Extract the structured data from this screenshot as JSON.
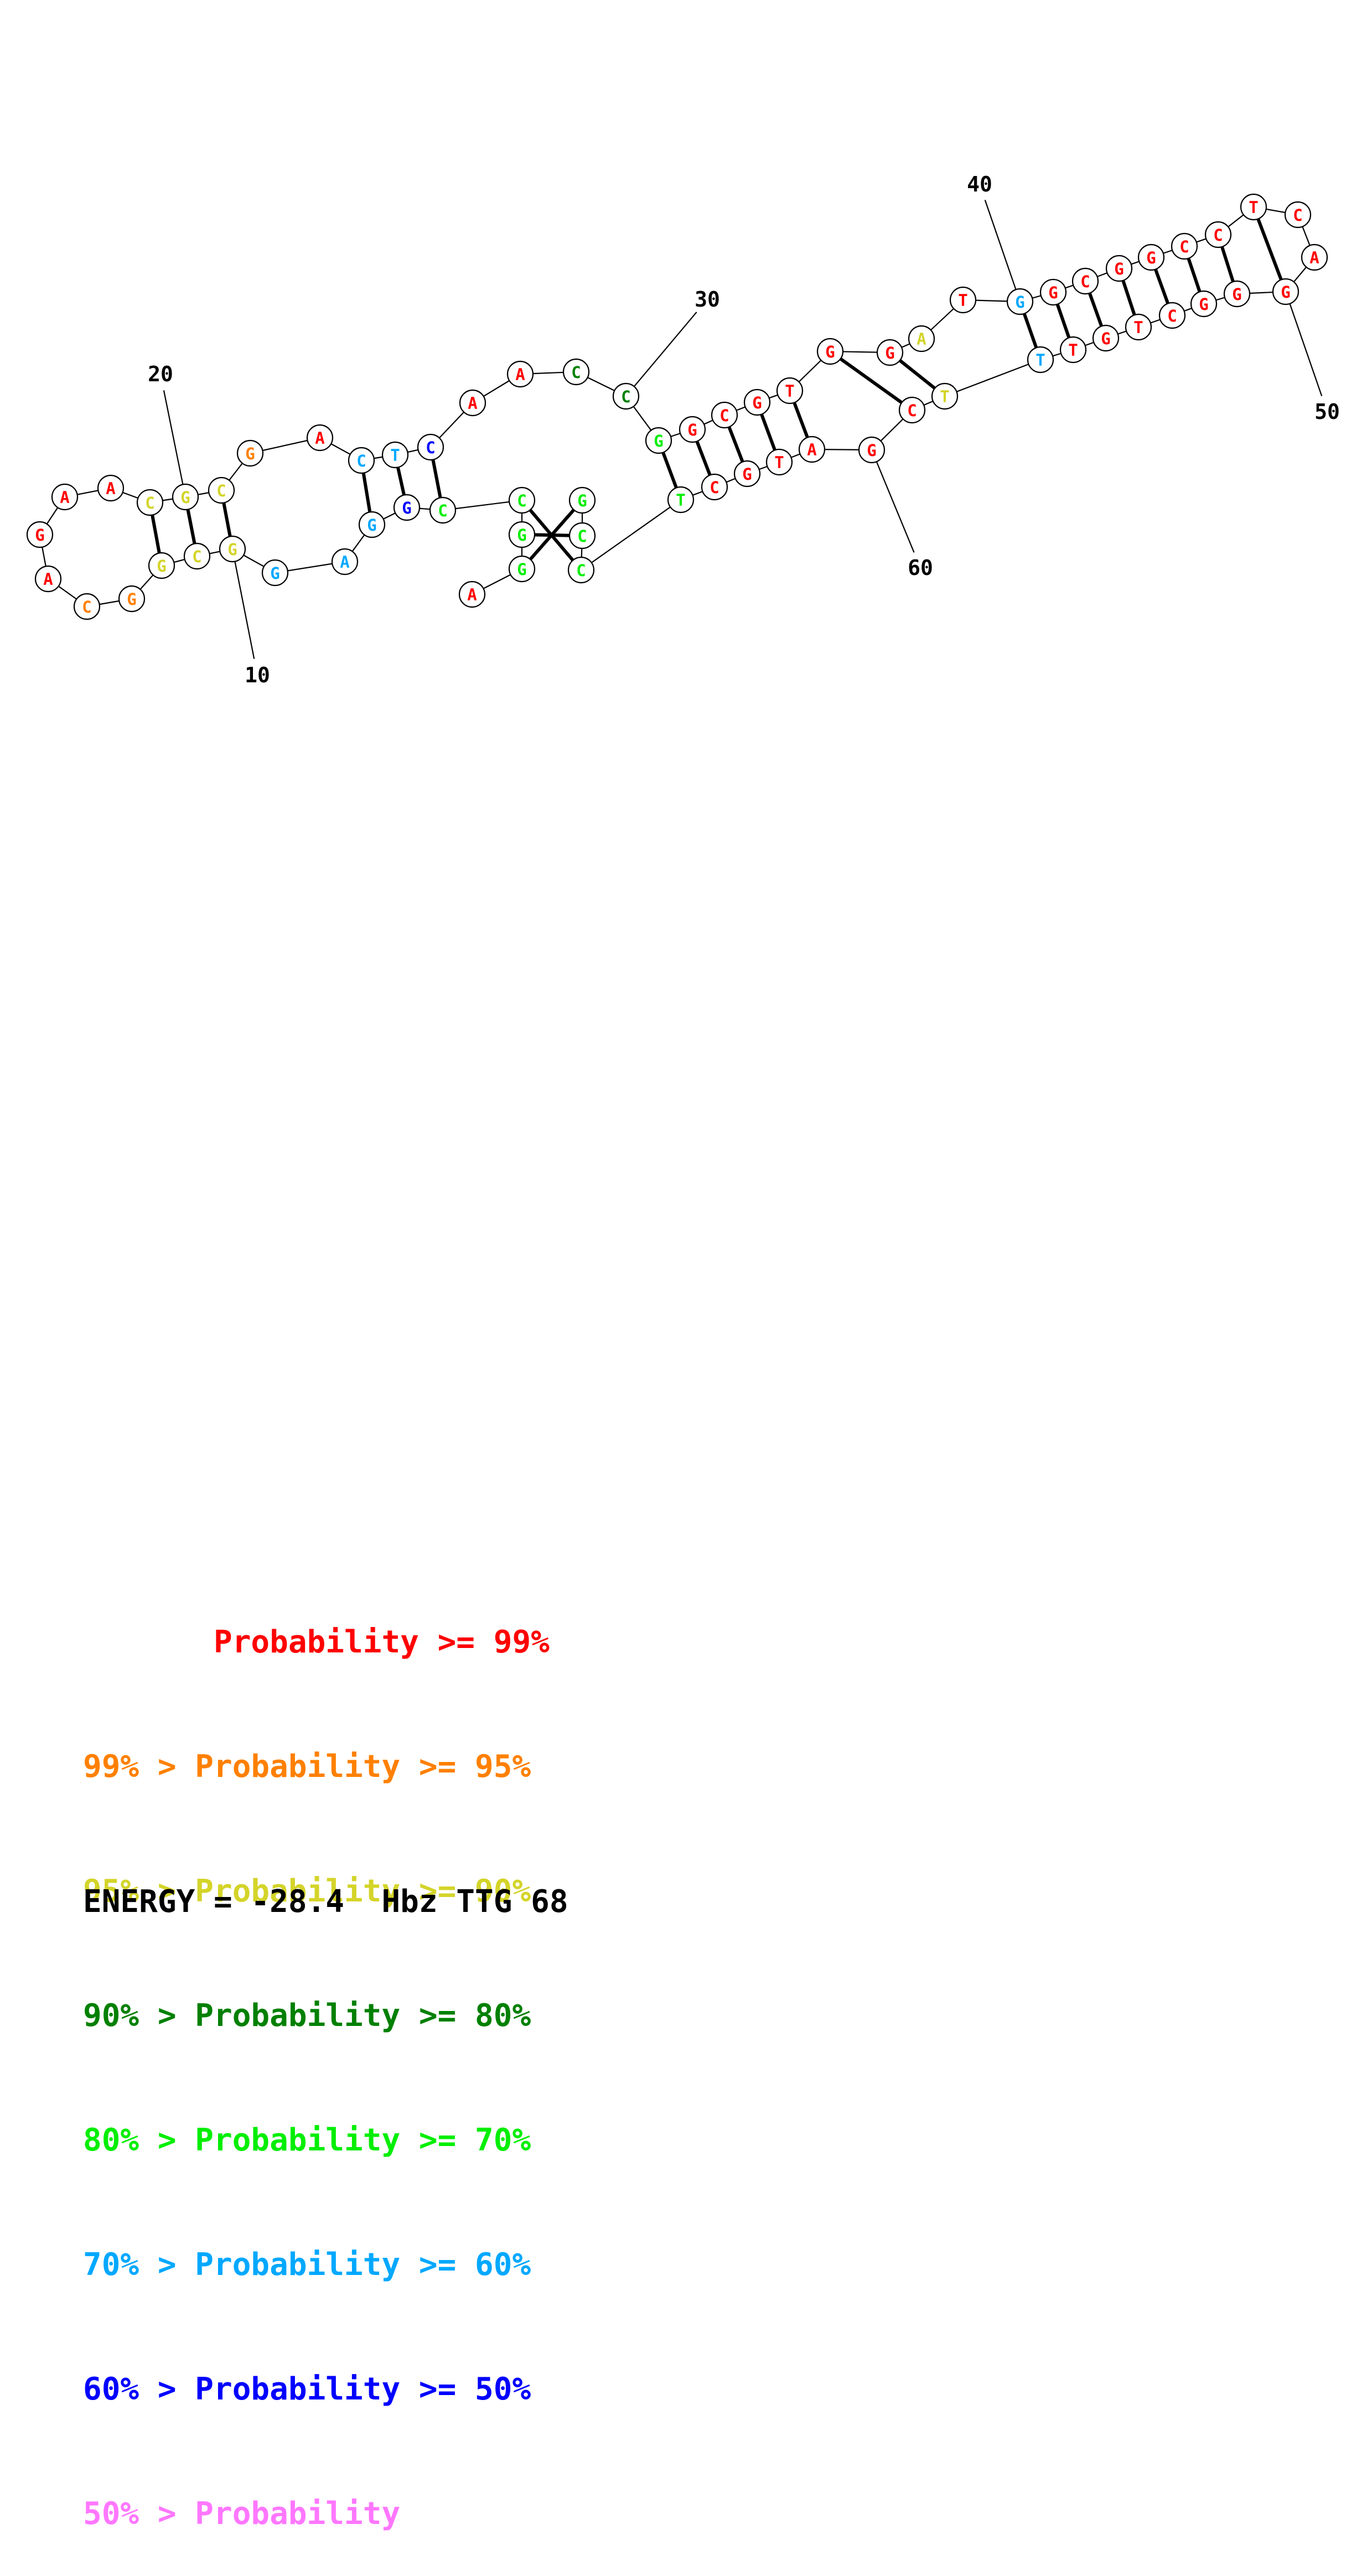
{
  "colors": {
    "p99": "#ff0000",
    "p95": "#ff8000",
    "p90": "#d4d42a",
    "p80": "#008000",
    "p70": "#00ee00",
    "p60": "#00a8ff",
    "p50": "#0000ff",
    "plow": "#ff77ff"
  },
  "sequence": [
    {
      "n": 1,
      "base": "A",
      "prob": "p99"
    },
    {
      "n": 2,
      "base": "G",
      "prob": "p70"
    },
    {
      "n": 3,
      "base": "G",
      "prob": "p70"
    },
    {
      "n": 4,
      "base": "C",
      "prob": "p70"
    },
    {
      "n": 5,
      "base": "C",
      "prob": "p70"
    },
    {
      "n": 6,
      "base": "G",
      "prob": "p50"
    },
    {
      "n": 7,
      "base": "G",
      "prob": "p60"
    },
    {
      "n": 8,
      "base": "A",
      "prob": "p60"
    },
    {
      "n": 9,
      "base": "G",
      "prob": "p60"
    },
    {
      "n": 10,
      "base": "G",
      "prob": "p90"
    },
    {
      "n": 11,
      "base": "C",
      "prob": "p90"
    },
    {
      "n": 12,
      "base": "G",
      "prob": "p90"
    },
    {
      "n": 13,
      "base": "G",
      "prob": "p95"
    },
    {
      "n": 14,
      "base": "C",
      "prob": "p95"
    },
    {
      "n": 15,
      "base": "A",
      "prob": "p99"
    },
    {
      "n": 16,
      "base": "G",
      "prob": "p99"
    },
    {
      "n": 17,
      "base": "A",
      "prob": "p99"
    },
    {
      "n": 18,
      "base": "A",
      "prob": "p99"
    },
    {
      "n": 19,
      "base": "C",
      "prob": "p90"
    },
    {
      "n": 20,
      "base": "G",
      "prob": "p90"
    },
    {
      "n": 21,
      "base": "C",
      "prob": "p90"
    },
    {
      "n": 22,
      "base": "G",
      "prob": "p95"
    },
    {
      "n": 23,
      "base": "A",
      "prob": "p99"
    },
    {
      "n": 24,
      "base": "C",
      "prob": "p60"
    },
    {
      "n": 25,
      "base": "T",
      "prob": "p60"
    },
    {
      "n": 26,
      "base": "C",
      "prob": "p50"
    },
    {
      "n": 27,
      "base": "A",
      "prob": "p99"
    },
    {
      "n": 28,
      "base": "A",
      "prob": "p99"
    },
    {
      "n": 29,
      "base": "C",
      "prob": "p80"
    },
    {
      "n": 30,
      "base": "C",
      "prob": "p80"
    },
    {
      "n": 31,
      "base": "G",
      "prob": "p70"
    },
    {
      "n": 32,
      "base": "G",
      "prob": "p99"
    },
    {
      "n": 33,
      "base": "C",
      "prob": "p99"
    },
    {
      "n": 34,
      "base": "G",
      "prob": "p99"
    },
    {
      "n": 35,
      "base": "T",
      "prob": "p99"
    },
    {
      "n": 36,
      "base": "G",
      "prob": "p99"
    },
    {
      "n": 37,
      "base": "G",
      "prob": "p99"
    },
    {
      "n": 38,
      "base": "A",
      "prob": "p90"
    },
    {
      "n": 39,
      "base": "T",
      "prob": "p99"
    },
    {
      "n": 40,
      "base": "G",
      "prob": "p60"
    },
    {
      "n": 41,
      "base": "G",
      "prob": "p99"
    },
    {
      "n": 42,
      "base": "C",
      "prob": "p99"
    },
    {
      "n": 43,
      "base": "G",
      "prob": "p99"
    },
    {
      "n": 44,
      "base": "G",
      "prob": "p99"
    },
    {
      "n": 45,
      "base": "C",
      "prob": "p99"
    },
    {
      "n": 46,
      "base": "C",
      "prob": "p99"
    },
    {
      "n": 47,
      "base": "T",
      "prob": "p99"
    },
    {
      "n": 48,
      "base": "C",
      "prob": "p99"
    },
    {
      "n": 49,
      "base": "A",
      "prob": "p99"
    },
    {
      "n": 50,
      "base": "G",
      "prob": "p99"
    },
    {
      "n": 51,
      "base": "G",
      "prob": "p99"
    },
    {
      "n": 52,
      "base": "G",
      "prob": "p99"
    },
    {
      "n": 53,
      "base": "C",
      "prob": "p99"
    },
    {
      "n": 54,
      "base": "T",
      "prob": "p99"
    },
    {
      "n": 55,
      "base": "G",
      "prob": "p99"
    },
    {
      "n": 56,
      "base": "T",
      "prob": "p99"
    },
    {
      "n": 57,
      "base": "T",
      "prob": "p60"
    },
    {
      "n": 58,
      "base": "T",
      "prob": "p90"
    },
    {
      "n": 59,
      "base": "C",
      "prob": "p99"
    },
    {
      "n": 60,
      "base": "G",
      "prob": "p99"
    },
    {
      "n": 61,
      "base": "A",
      "prob": "p99"
    },
    {
      "n": 62,
      "base": "T",
      "prob": "p99"
    },
    {
      "n": 63,
      "base": "G",
      "prob": "p99"
    },
    {
      "n": 64,
      "base": "C",
      "prob": "p99"
    },
    {
      "n": 65,
      "base": "T",
      "prob": "p70"
    },
    {
      "n": 66,
      "base": "C",
      "prob": "p70"
    },
    {
      "n": 67,
      "base": "C",
      "prob": "p70"
    },
    {
      "n": 68,
      "base": "G",
      "prob": "p70"
    }
  ],
  "pairs": [
    [
      2,
      68
    ],
    [
      3,
      67
    ],
    [
      4,
      66
    ],
    [
      5,
      26
    ],
    [
      6,
      25
    ],
    [
      7,
      24
    ],
    [
      10,
      21
    ],
    [
      11,
      20
    ],
    [
      12,
      19
    ],
    [
      31,
      65
    ],
    [
      32,
      64
    ],
    [
      33,
      63
    ],
    [
      34,
      62
    ],
    [
      35,
      61
    ],
    [
      36,
      59
    ],
    [
      37,
      58
    ],
    [
      40,
      57
    ],
    [
      41,
      56
    ],
    [
      42,
      55
    ],
    [
      43,
      54
    ],
    [
      44,
      53
    ],
    [
      45,
      52
    ],
    [
      46,
      51
    ],
    [
      47,
      50
    ]
  ],
  "ticks": [
    {
      "label": "10",
      "n": 10
    },
    {
      "label": "20",
      "n": 20
    },
    {
      "label": "30",
      "n": 30
    },
    {
      "label": "40",
      "n": 40
    },
    {
      "label": "50",
      "n": 50
    },
    {
      "label": "60",
      "n": 60
    }
  ],
  "legend": [
    {
      "text": "       Probability >= 99%",
      "prob": "p99"
    },
    {
      "text": "99% > Probability >= 95%",
      "prob": "p95"
    },
    {
      "text": "95% > Probability >= 90%",
      "prob": "p90"
    },
    {
      "text": "90% > Probability >= 80%",
      "prob": "p80"
    },
    {
      "text": "80% > Probability >= 70%",
      "prob": "p70"
    },
    {
      "text": "70% > Probability >= 60%",
      "prob": "p60"
    },
    {
      "text": "60% > Probability >= 50%",
      "prob": "p50"
    },
    {
      "text": "50% > Probability",
      "prob": "plow"
    }
  ],
  "energy_line": "ENERGY = -28.4  Hbz TTG 68"
}
